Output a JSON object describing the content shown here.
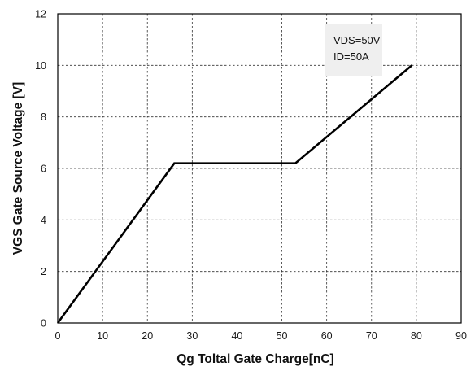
{
  "chart_data": {
    "type": "line",
    "title": "",
    "xlabel": "Qg Toltal Gate Charge[nC]",
    "ylabel": "VGS Gate Source Voltage [V]",
    "xlim": [
      0,
      90
    ],
    "ylim": [
      0,
      12
    ],
    "x_ticks": [
      "0",
      "10",
      "20",
      "30",
      "40",
      "50",
      "60",
      "70",
      "80",
      "90"
    ],
    "y_ticks": [
      "0",
      "2",
      "4",
      "6",
      "8",
      "10",
      "12"
    ],
    "grid": true,
    "grid_style": "dashed",
    "series": [
      {
        "x": [
          0,
          26,
          53,
          79
        ],
        "y": [
          0,
          6.2,
          6.2,
          10.0
        ],
        "color": "#000000"
      }
    ],
    "annotation": {
      "lines": [
        "VDS=50V",
        "ID=50A"
      ],
      "background": "#efefef"
    }
  }
}
